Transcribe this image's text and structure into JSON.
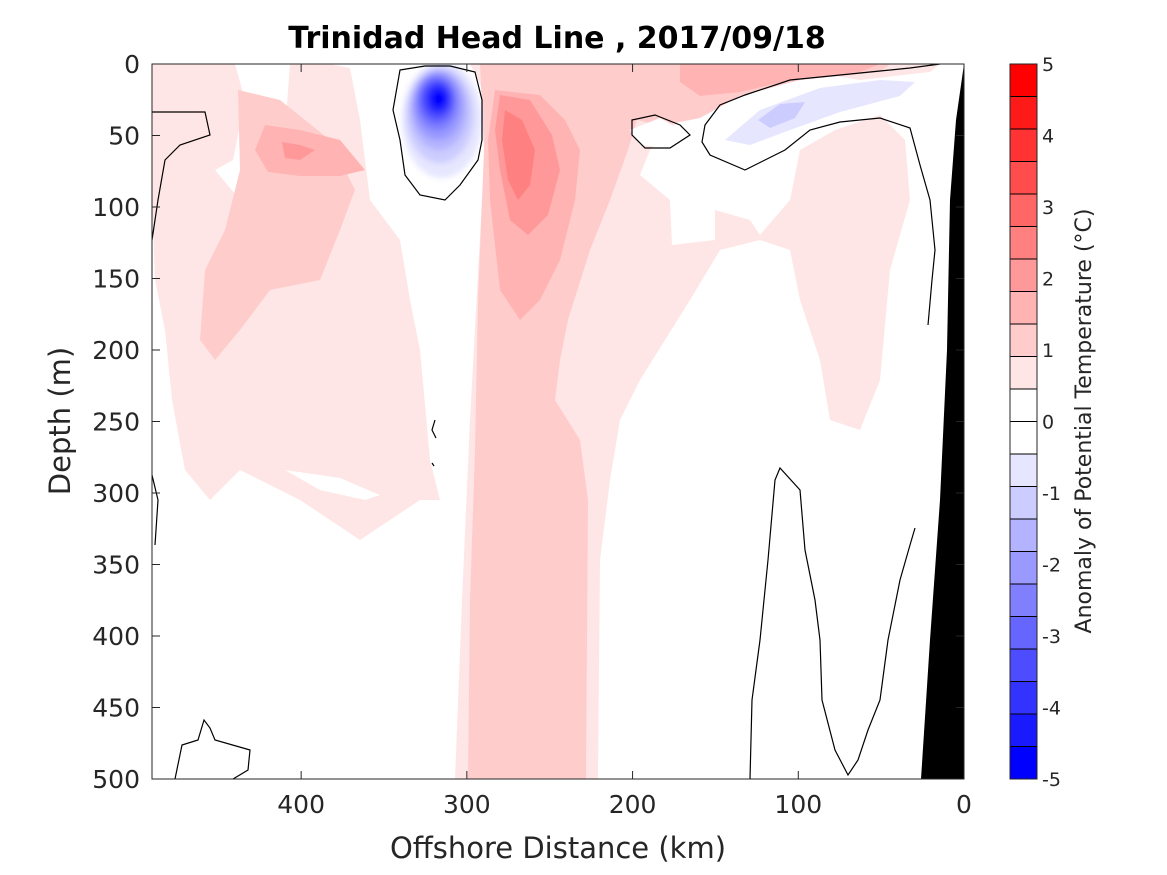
{
  "chart_data": {
    "type": "heatmap",
    "title": "Trinidad Head Line , 2017/09/18",
    "xlabel": "Offshore Distance (km)",
    "ylabel": "Depth (m)",
    "xlim": [
      490,
      0
    ],
    "ylim": [
      0,
      500
    ],
    "x_ticks": [
      400,
      300,
      200,
      100,
      0
    ],
    "y_ticks": [
      0,
      50,
      100,
      150,
      200,
      250,
      300,
      350,
      400,
      450,
      500
    ],
    "x_tick_labels": [
      "400",
      "300",
      "200",
      "100",
      "0"
    ],
    "y_tick_labels": [
      "0",
      "50",
      "100",
      "150",
      "200",
      "250",
      "300",
      "350",
      "400",
      "450",
      "500"
    ],
    "colorbar": {
      "label": "Anomaly of Potential Temperature (°C)",
      "range": [
        -5,
        5
      ],
      "step": 0.5,
      "ticks": [
        5,
        4,
        3,
        2,
        1,
        0,
        -1,
        -2,
        -3,
        -4,
        -5
      ],
      "tick_labels": [
        "5",
        "4",
        "3",
        "2",
        "1",
        "0",
        "-1",
        "-2",
        "-3",
        "-4",
        "-5"
      ],
      "colors": [
        "#ff0000",
        "#ff1a1a",
        "#ff3333",
        "#ff4d4d",
        "#ff6666",
        "#ff8080",
        "#ff9999",
        "#ffb3b3",
        "#ffcccc",
        "#ffe6e6",
        "#ffffff",
        "#ffffff",
        "#e6e6ff",
        "#ccccff",
        "#b3b3ff",
        "#9999ff",
        "#8080ff",
        "#6666ff",
        "#4d4dff",
        "#3333ff",
        "#1a1aff",
        "#0000ff"
      ]
    },
    "features": [
      {
        "name": "warm core",
        "x_km": [
          300,
          230
        ],
        "depth_m": [
          0,
          500
        ],
        "anomaly_c": 2.0
      },
      {
        "name": "warm maximum",
        "x_km": 270,
        "depth_m": 70,
        "anomaly_c": 2.5
      },
      {
        "name": "cold eddy",
        "x_km": 315,
        "depth_m": 30,
        "anomaly_c": -4.5
      },
      {
        "name": "offshore warm region",
        "x_km": [
          480,
          330
        ],
        "depth_m": [
          0,
          300
        ],
        "anomaly_c": 1.0
      },
      {
        "name": "warm patch",
        "x_km": 410,
        "depth_m": 60,
        "anomaly_c": 2.0
      },
      {
        "name": "surface warm band",
        "x_km": [
          290,
          120
        ],
        "depth_m": [
          0,
          20
        ],
        "anomaly_c": 1.5
      },
      {
        "name": "nearshore cold lens",
        "x_km": 110,
        "depth_m": 30,
        "anomaly_c": -1.0
      },
      {
        "name": "nearshore warm region",
        "x_km": [
          110,
          40
        ],
        "depth_m": [
          50,
          260
        ],
        "anomaly_c": 0.75
      },
      {
        "name": "bathymetry",
        "x_km": [
          25,
          0
        ],
        "depth_m": [
          0,
          500
        ]
      }
    ]
  }
}
